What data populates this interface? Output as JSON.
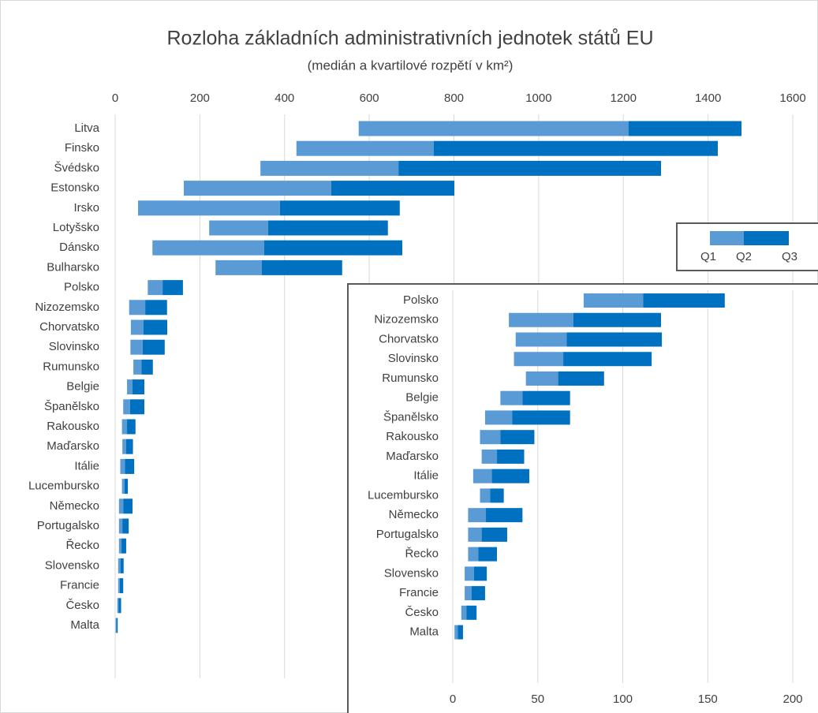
{
  "chart_data": [
    {
      "type": "floating_bar",
      "title": "Rozloha základních administrativních jednotek států EU",
      "subtitle": "(medián a kvartilové rozpětí v km²)",
      "categories": [
        "Litva",
        "Finsko",
        "Švédsko",
        "Estonsko",
        "Irsko",
        "Lotyšsko",
        "Dánsko",
        "Bulharsko",
        "Polsko",
        "Nizozemsko",
        "Chorvatsko",
        "Slovinsko",
        "Rumunsko",
        "Belgie",
        "Španělsko",
        "Rakousko",
        "Maďarsko",
        "Itálie",
        "Lucembursko",
        "Německo",
        "Portugalsko",
        "Řecko",
        "Slovensko",
        "Francie",
        "Česko",
        "Malta"
      ],
      "series": [
        {
          "name": "Q1",
          "color": "#5b9bd5",
          "values": [
            575,
            428,
            343,
            162,
            54,
            222,
            88,
            237,
            77,
            33,
            37,
            36,
            43,
            28,
            19,
            16,
            17,
            12,
            16,
            9,
            9,
            9,
            7,
            7,
            5,
            1
          ]
        },
        {
          "name": "Q2",
          "color": "#0070c0",
          "values": [
            1212,
            752,
            669,
            510,
            389,
            361,
            352,
            346,
            112,
            71,
            67,
            65,
            62,
            41,
            35,
            28,
            26,
            23,
            22,
            19.5,
            17,
            15,
            12.5,
            11,
            8,
            3
          ]
        },
        {
          "name": "Q3",
          "values": [
            1479,
            1423,
            1289,
            801,
            672,
            644,
            678,
            536,
            160,
            122.5,
            123,
            117,
            89,
            69,
            69,
            48,
            42,
            45,
            30,
            41,
            32,
            26,
            20,
            19,
            14,
            6
          ]
        }
      ],
      "xlim": [
        0,
        1600
      ],
      "xticks": [
        0,
        200,
        400,
        600,
        800,
        1000,
        1200,
        1400,
        1600
      ],
      "grid": true
    },
    {
      "type": "floating_bar",
      "categories": [
        "Polsko",
        "Nizozemsko",
        "Chorvatsko",
        "Slovinsko",
        "Rumunsko",
        "Belgie",
        "Španělsko",
        "Rakousko",
        "Maďarsko",
        "Itálie",
        "Lucembursko",
        "Německo",
        "Portugalsko",
        "Řecko",
        "Slovensko",
        "Francie",
        "Česko",
        "Malta"
      ],
      "series": [
        {
          "color": "#5b9bd5",
          "values": [
            77,
            33,
            37,
            36,
            43,
            28,
            19,
            16,
            17,
            12,
            16,
            9,
            9,
            9,
            7,
            7,
            5,
            1
          ]
        },
        {
          "color": "#0070c0",
          "values": [
            112,
            71,
            67,
            65,
            62,
            41,
            35,
            28,
            26,
            23,
            22,
            19.5,
            17,
            15,
            12.5,
            11,
            8,
            3
          ]
        },
        {
          "values": [
            160,
            122.5,
            123,
            117,
            89,
            69,
            69,
            48,
            42,
            45,
            30,
            41,
            32,
            26,
            20,
            19,
            14,
            6
          ]
        }
      ],
      "xlim": [
        0,
        200
      ],
      "xticks": [
        0,
        50,
        100,
        150,
        200
      ],
      "grid": true
    }
  ]
}
